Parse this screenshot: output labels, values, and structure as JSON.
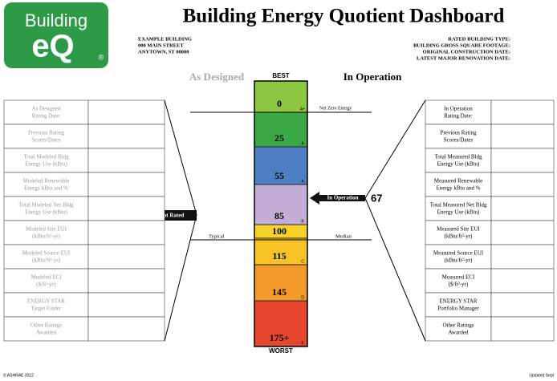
{
  "logo": {
    "text": "Building",
    "mark": "eQ",
    "reg": "®"
  },
  "header": {
    "title": "Building Energy Quotient Dashboard",
    "address": [
      "EXAMPLE BUILDING",
      "000 MAIN STREET",
      "ANYTOWN, ST 00000"
    ],
    "building_info": [
      "RATED BUILDING TYPE:",
      "BUILDING GROSS SQUARE FOOTAGE:",
      "ORIGINAL CONSTRUCTION DATE:",
      "LATEST MAJOR RENOVATION DATE:"
    ]
  },
  "columns": {
    "designed": "As Designed",
    "operation": "In Operation"
  },
  "scale": {
    "best": "BEST",
    "worst": "WORST",
    "bands": [
      {
        "label": "0",
        "grade": "A+",
        "color": "#8dc641"
      },
      {
        "label": "25",
        "grade": "A",
        "color": "#3aa845"
      },
      {
        "label": "55",
        "grade": "A",
        "color": "#4f7fc3"
      },
      {
        "label": "85",
        "grade": "B",
        "color": "#c5aed6"
      },
      {
        "label": "100",
        "color": "#f6d32a"
      },
      {
        "label": "115",
        "grade": "C",
        "color": "#f6c226"
      },
      {
        "label": "145",
        "grade": "D",
        "color": "#f39a2a"
      },
      {
        "label": "175+",
        "grade": "E",
        "color": "#e8472f"
      }
    ]
  },
  "markers": {
    "net_zero": "Net Zero Energy",
    "typical": "Typical",
    "median": "Median",
    "not_rated": "Not Rated",
    "in_operation": {
      "label": "In Operation",
      "score": 67
    }
  },
  "left_table": {
    "rows": [
      {
        "lines": [
          "As Designed",
          "Rating Date:"
        ]
      },
      {
        "lines": [
          "Previous Rating",
          "Scores/Dates"
        ]
      },
      {
        "lines": [
          "Total Modeled Bldg",
          "Energy Use (kBtu)"
        ]
      },
      {
        "lines": [
          "Modeled Renewable",
          "Energy kBtu and %"
        ]
      },
      {
        "lines": [
          "Total Modeled Net Bldg",
          "Energy Use (kBtu)"
        ]
      },
      {
        "lines": [
          "Modeled Site EUI",
          "(kBtu/ft²-yr)"
        ]
      },
      {
        "lines": [
          "Modeled Source EUI",
          "(kBtu/ft²-yr)"
        ]
      },
      {
        "lines": [
          "Modeled ECI",
          "($/ft²-yr)"
        ]
      },
      {
        "lines": [
          "ENERGY STAR",
          "Target Finder"
        ]
      },
      {
        "lines": [
          "Other Ratings",
          "Awarded"
        ]
      }
    ]
  },
  "right_table": {
    "rows": [
      {
        "lines": [
          "In Operation",
          "Rating Date:"
        ]
      },
      {
        "lines": [
          "Previous Rating",
          "Scores/Dates"
        ]
      },
      {
        "lines": [
          "Total Measured Bldg",
          "Energy Use (kBtu)"
        ]
      },
      {
        "lines": [
          "Measured Renewable",
          "Energy kBtu and %"
        ]
      },
      {
        "lines": [
          "Total Measured Net Bldg",
          "Energy Use (kBtu)"
        ]
      },
      {
        "lines": [
          "Measured Site EUI",
          "(kBtu/ft²-yr)"
        ]
      },
      {
        "lines": [
          "Measured Source EUI",
          "(kBtu/ft²-yr)"
        ]
      },
      {
        "lines": [
          "Measured ECI",
          "($/ft²-yr)"
        ]
      },
      {
        "lines": [
          "ENERGY STAR",
          "Portfolio Manager"
        ]
      },
      {
        "lines": [
          "Other Ratings",
          "Awarded"
        ]
      }
    ]
  },
  "footer": {
    "left": "© ASHRAE 2012",
    "right": "Updated Sept"
  }
}
